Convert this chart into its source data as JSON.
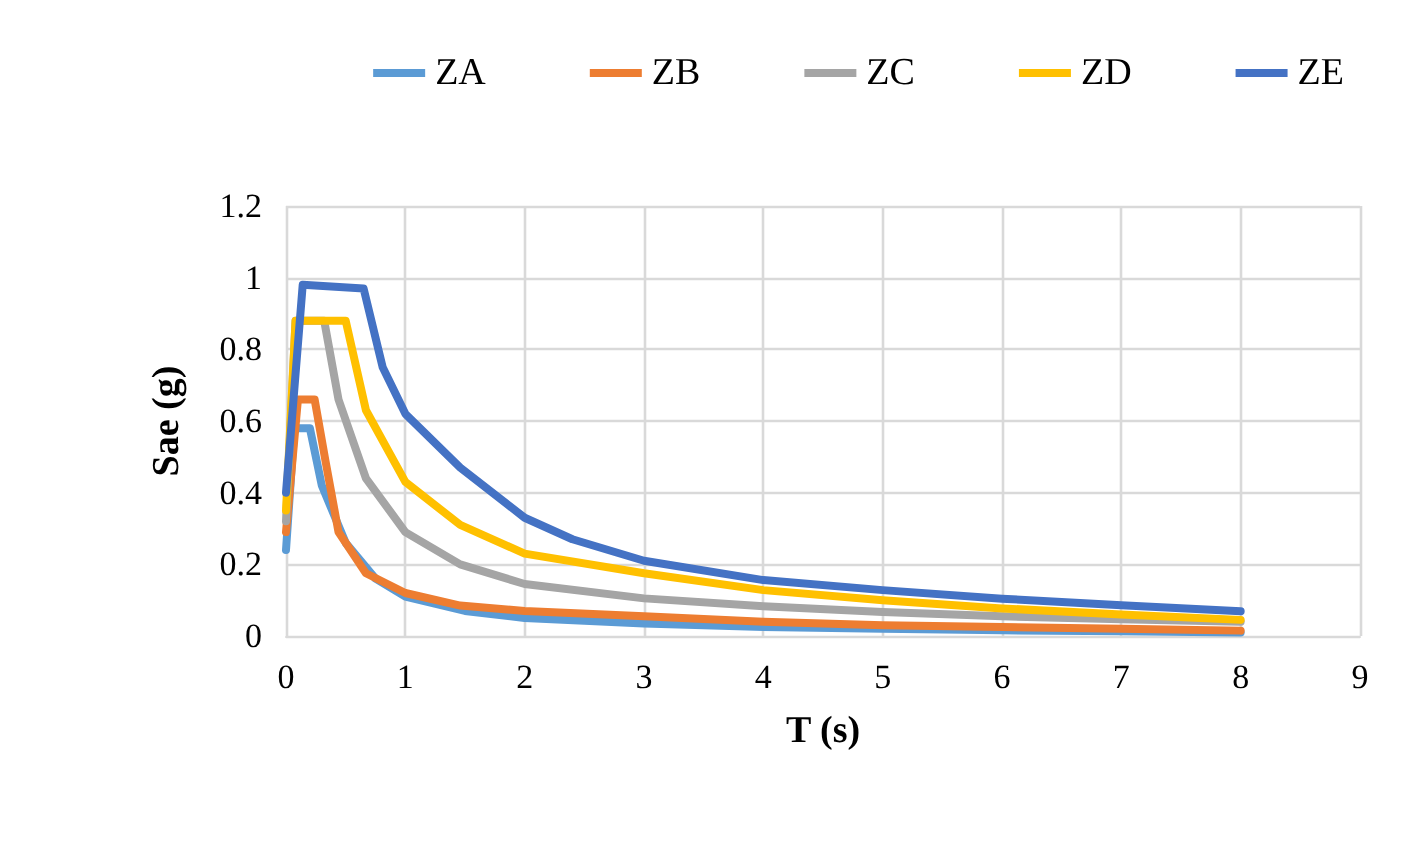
{
  "chart_data": {
    "type": "line",
    "xlabel": "T (s)",
    "ylabel": "Sae (g)",
    "xlim": [
      0,
      9
    ],
    "xticks": [
      0,
      1,
      2,
      3,
      4,
      5,
      6,
      7,
      8,
      9
    ],
    "ylim": [
      0,
      1.2
    ],
    "yticks": [
      0,
      0.2,
      0.4,
      0.6,
      0.8,
      1,
      1.2
    ],
    "grid": true,
    "legend": "top",
    "marker": "none",
    "line_style": "solid",
    "series": [
      {
        "name": "ZA",
        "color": "#5b9bd5",
        "x": [
          0,
          0.07,
          0.2,
          0.3,
          0.5,
          0.75,
          1,
          1.5,
          2,
          3,
          4,
          5,
          6,
          7,
          8
        ],
        "values": [
          0.24,
          0.58,
          0.58,
          0.42,
          0.26,
          0.16,
          0.11,
          0.07,
          0.05,
          0.035,
          0.025,
          0.02,
          0.016,
          0.013,
          0.01
        ]
      },
      {
        "name": "ZB",
        "color": "#ed7d31",
        "x": [
          0,
          0.1,
          0.24,
          0.33,
          0.44,
          0.67,
          1,
          1.46,
          2,
          3,
          4,
          5,
          6,
          7,
          8
        ],
        "values": [
          0.29,
          0.66,
          0.66,
          0.49,
          0.29,
          0.175,
          0.12,
          0.085,
          0.07,
          0.055,
          0.04,
          0.03,
          0.025,
          0.02,
          0.015
        ]
      },
      {
        "name": "ZC",
        "color": "#a5a5a5",
        "x": [
          0,
          0.08,
          0.32,
          0.44,
          0.67,
          1,
          1.46,
          2,
          3,
          4,
          5,
          6,
          7,
          8
        ],
        "values": [
          0.32,
          0.88,
          0.88,
          0.66,
          0.44,
          0.29,
          0.2,
          0.145,
          0.105,
          0.083,
          0.067,
          0.055,
          0.047,
          0.04
        ]
      },
      {
        "name": "ZD",
        "color": "#ffc000",
        "x": [
          0,
          0.08,
          0.5,
          0.67,
          1,
          1.46,
          2,
          3,
          4,
          5,
          6,
          7,
          8
        ],
        "values": [
          0.35,
          0.88,
          0.88,
          0.63,
          0.43,
          0.31,
          0.23,
          0.175,
          0.128,
          0.1,
          0.077,
          0.06,
          0.045
        ]
      },
      {
        "name": "ZE",
        "color": "#4472c4",
        "x": [
          0,
          0.14,
          0.65,
          0.81,
          1,
          1.46,
          2,
          2.4,
          3,
          4,
          5,
          6,
          7,
          8
        ],
        "values": [
          0.4,
          0.98,
          0.97,
          0.75,
          0.62,
          0.47,
          0.33,
          0.27,
          0.21,
          0.156,
          0.128,
          0.104,
          0.086,
          0.069
        ]
      }
    ]
  }
}
